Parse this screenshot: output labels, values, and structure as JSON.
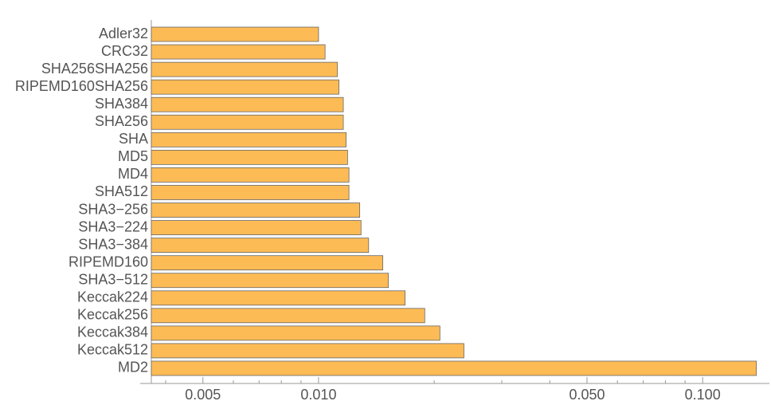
{
  "chart_data": {
    "type": "bar",
    "orientation": "horizontal",
    "log_x": true,
    "color": "#fdbb55",
    "categories": [
      "Adler32",
      "CRC32",
      "SHA256SHA256",
      "RIPEMD160SHA256",
      "SHA384",
      "SHA256",
      "SHA",
      "MD5",
      "MD4",
      "SHA512",
      "SHA3−256",
      "SHA3−224",
      "SHA3−384",
      "RIPEMD160",
      "SHA3−512",
      "Keccak224",
      "Keccak256",
      "Keccak384",
      "Keccak512",
      "MD2"
    ],
    "values": [
      0.01,
      0.0104,
      0.0112,
      0.0113,
      0.0116,
      0.0116,
      0.0118,
      0.0119,
      0.012,
      0.012,
      0.0128,
      0.0129,
      0.0135,
      0.0147,
      0.0152,
      0.0168,
      0.0189,
      0.0207,
      0.0239,
      0.138
    ],
    "xlim": [
      0.00367,
      0.145
    ],
    "xticks": [
      0.005,
      {
        "value": 0.01,
        "label": "0.010"
      },
      {
        "value": 0.05,
        "label": "0.050"
      },
      {
        "value": 0.1,
        "label": "0.100"
      }
    ],
    "xminorticks": [
      0.004,
      0.006,
      0.007,
      0.008,
      0.009,
      0.02,
      0.03,
      0.04,
      0.06,
      0.07,
      0.08,
      0.09
    ]
  }
}
